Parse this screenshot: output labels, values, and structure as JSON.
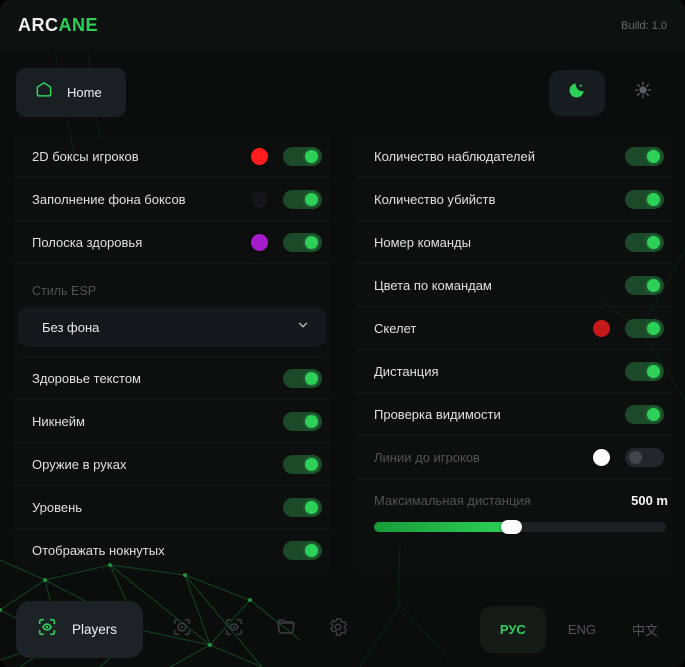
{
  "header": {
    "logo_primary": "ARC",
    "logo_accent": "ANE",
    "build_label": "Build: 1.0"
  },
  "toolbar": {
    "home_label": "Home",
    "theme_active": "dark"
  },
  "colors": {
    "accent": "#2ed158",
    "box_color": "#ff1c1c",
    "box_fill_color": "#141419",
    "healthbar_color": "#a61bcb",
    "skeleton_color": "#c61919",
    "lines_color": "#ffffff"
  },
  "left_rows": [
    {
      "type": "toggle",
      "label": "2D боксы игроков",
      "color": "#ff1c1c",
      "on": true
    },
    {
      "type": "toggle",
      "label": "Заполнение фона боксов",
      "color": "#141419",
      "on": true
    },
    {
      "type": "toggle",
      "label": "Полоска здоровья",
      "color": "#a61bcb",
      "on": true
    },
    {
      "type": "label",
      "label": "Стиль ESP"
    },
    {
      "type": "select",
      "value": "Без фона"
    },
    {
      "type": "toggle",
      "label": "Здоровье текстом",
      "on": true
    },
    {
      "type": "toggle",
      "label": "Никнейм",
      "on": true
    },
    {
      "type": "toggle",
      "label": "Оружие в руках",
      "on": true
    },
    {
      "type": "toggle",
      "label": "Уровень",
      "on": true
    },
    {
      "type": "toggle",
      "label": "Отображать нокнутых",
      "on": true
    }
  ],
  "right_rows": [
    {
      "type": "toggle",
      "label": "Количество наблюдателей",
      "on": true
    },
    {
      "type": "toggle",
      "label": "Количество убийств",
      "on": true
    },
    {
      "type": "toggle",
      "label": "Номер команды",
      "on": true
    },
    {
      "type": "toggle",
      "label": "Цвета по командам",
      "on": true
    },
    {
      "type": "toggle",
      "label": "Скелет",
      "color": "#c61919",
      "on": true
    },
    {
      "type": "toggle",
      "label": "Дистанция",
      "on": true
    },
    {
      "type": "toggle",
      "label": "Проверка видимости",
      "on": true
    },
    {
      "type": "toggle",
      "label": "Линии до игроков",
      "color": "#ffffff",
      "on": false,
      "muted": true
    },
    {
      "type": "slider",
      "label": "Максимальная дистанция",
      "value": "500 m",
      "percent": 47,
      "muted": true
    }
  ],
  "footer": {
    "players_label": "Players",
    "tool_icons": [
      "aim-icon",
      "scan-eye-icon",
      "folder-icon",
      "gear-icon"
    ],
    "languages": [
      {
        "label": "РУС",
        "active": true
      },
      {
        "label": "ENG",
        "active": false
      },
      {
        "label": "中文",
        "active": false
      }
    ]
  }
}
